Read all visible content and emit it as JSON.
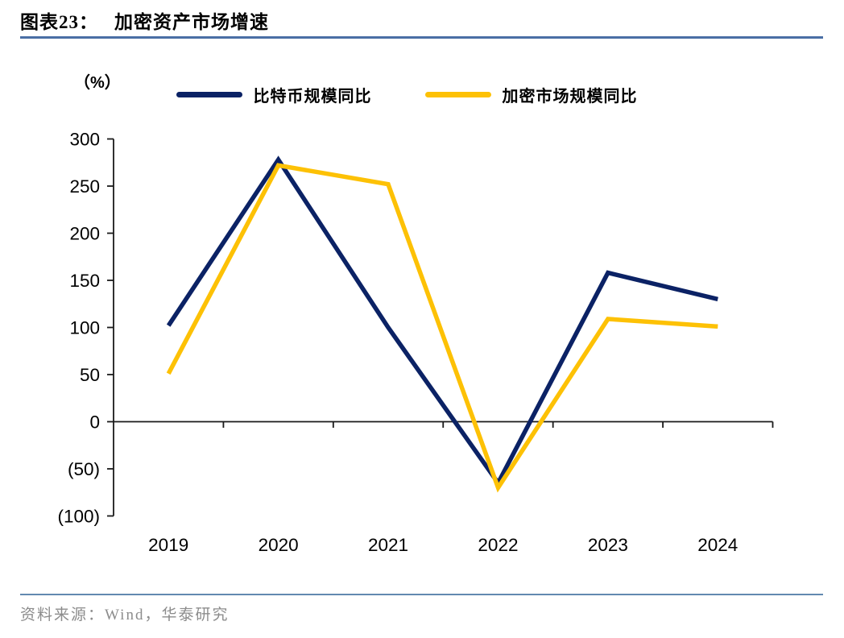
{
  "header": {
    "label": "图表23：",
    "title": "加密资产市场增速"
  },
  "footer": {
    "source_text": "资料来源：Wind，华泰研究"
  },
  "colors": {
    "bitcoin_line": "#0b2265",
    "crypto_line": "#fdc105",
    "title_rule": "#4a6fa5",
    "footer_rule": "#6289b0",
    "axis": "#1a1a1a",
    "tick_text": "#000000",
    "source_text_color": "#8c8c8c"
  },
  "chart_data": {
    "type": "line",
    "title": "加密资产市场增速",
    "ylabel": "（%）",
    "categories": [
      "2019",
      "2020",
      "2021",
      "2022",
      "2023",
      "2024"
    ],
    "series": [
      {
        "name": "比特币规模同比",
        "color_key": "bitcoin_line",
        "values": [
          102,
          278,
          100,
          -65,
          158,
          130
        ]
      },
      {
        "name": "加密市场规模同比",
        "color_key": "crypto_line",
        "values": [
          51,
          272,
          252,
          -70,
          109,
          101
        ]
      }
    ],
    "ylim": [
      -100,
      300
    ],
    "ytick_step": 50,
    "negative_format": "parentheses",
    "legend_position": "top",
    "grid": false,
    "category_axis_at_zero": true
  }
}
